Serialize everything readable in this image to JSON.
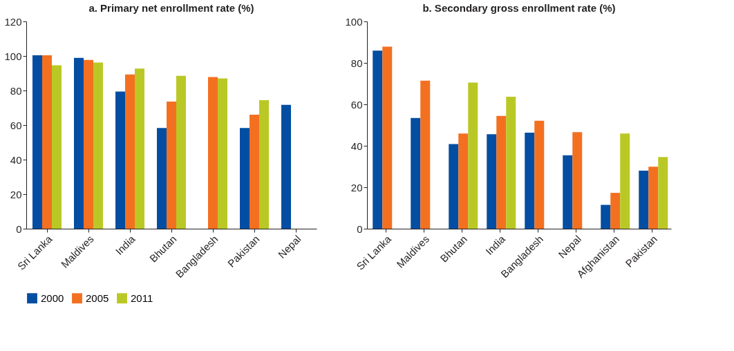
{
  "chart_data": [
    {
      "type": "bar",
      "title": "a. Primary net enrollment rate (%)",
      "categories": [
        "Sri Lanka",
        "Maldives",
        "India",
        "Bhutan",
        "Bangladesh",
        "Pakistan",
        "Nepal"
      ],
      "series": [
        {
          "name": "2000",
          "color": "#034ea2",
          "values": [
            100.4,
            98.9,
            79.4,
            58.3,
            null,
            58.3,
            71.7
          ]
        },
        {
          "name": "2005",
          "color": "#f37021",
          "values": [
            100.4,
            97.7,
            89.3,
            73.6,
            87.8,
            66.0,
            null
          ]
        },
        {
          "name": "2011",
          "color": "#bac825",
          "values": [
            94.6,
            96.2,
            92.7,
            88.5,
            87.0,
            74.4,
            null
          ]
        }
      ],
      "ylim": [
        0,
        120
      ],
      "yticks": [
        0,
        20,
        40,
        60,
        80,
        100,
        120
      ],
      "grid": false,
      "legend": "bottom"
    },
    {
      "type": "bar",
      "title": "b. Secondary gross enrollment rate (%)",
      "categories": [
        "Sri Lanka",
        "Maldives",
        "Bhutan",
        "India",
        "Bangladesh",
        "Nepal",
        "Afghanistan",
        "Pakistan"
      ],
      "series": [
        {
          "name": "2000",
          "color": "#034ea2",
          "values": [
            85.9,
            53.4,
            40.8,
            45.6,
            46.3,
            35.4,
            11.5,
            28.0
          ]
        },
        {
          "name": "2005",
          "color": "#f37021",
          "values": [
            87.8,
            71.4,
            45.9,
            54.4,
            52.1,
            46.6,
            17.3,
            29.9
          ]
        },
        {
          "name": "2011",
          "color": "#bac825",
          "values": [
            null,
            null,
            70.5,
            63.7,
            null,
            null,
            45.9,
            34.6
          ]
        }
      ],
      "ylim": [
        0,
        100
      ],
      "yticks": [
        0,
        20,
        40,
        60,
        80,
        100
      ],
      "grid": false,
      "legend": "bottom"
    }
  ]
}
